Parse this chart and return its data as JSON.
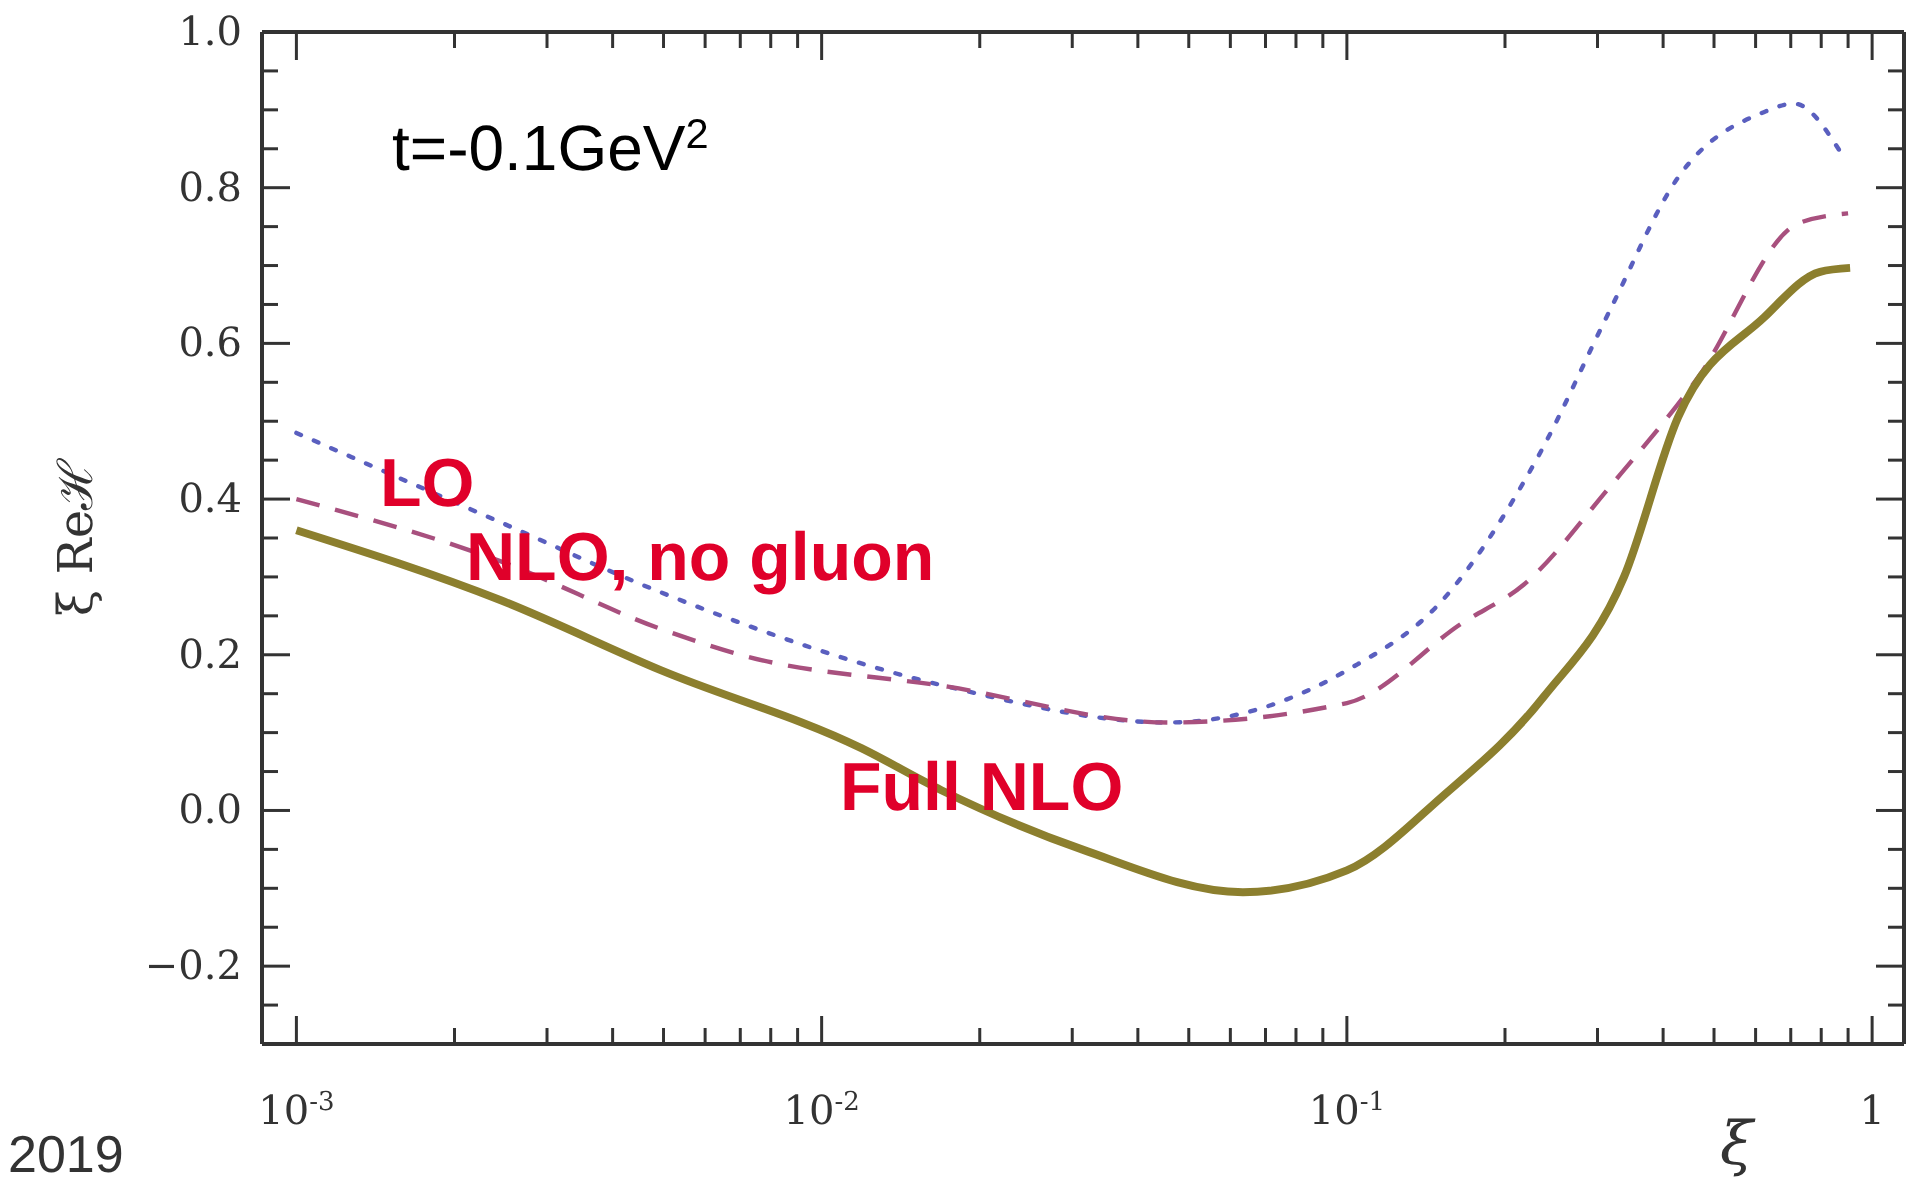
{
  "chart_data": {
    "type": "line",
    "xlabel": "ξ",
    "ylabel": "ξ Reℋ",
    "log": "x",
    "grid": false,
    "legend": false,
    "marker": "none",
    "xlim": [
      0.00086,
      1.15
    ],
    "ylim": [
      -0.3,
      1.0
    ],
    "xticks": [
      {
        "value": 0.001,
        "label": "10$^{-3}$"
      },
      {
        "value": 0.002,
        "label": null
      },
      {
        "value": 0.003,
        "label": null
      },
      {
        "value": 0.004,
        "label": null
      },
      {
        "value": 0.005,
        "label": null
      },
      {
        "value": 0.006,
        "label": null
      },
      {
        "value": 0.007,
        "label": null
      },
      {
        "value": 0.008,
        "label": null
      },
      {
        "value": 0.009,
        "label": null
      },
      {
        "value": 0.01,
        "label": "10$^{-2}$"
      },
      {
        "value": 0.02,
        "label": null
      },
      {
        "value": 0.03,
        "label": null
      },
      {
        "value": 0.04,
        "label": null
      },
      {
        "value": 0.05,
        "label": null
      },
      {
        "value": 0.06,
        "label": null
      },
      {
        "value": 0.07,
        "label": null
      },
      {
        "value": 0.08,
        "label": null
      },
      {
        "value": 0.09,
        "label": null
      },
      {
        "value": 0.1,
        "label": "10$^{-1}$"
      },
      {
        "value": 0.2,
        "label": null
      },
      {
        "value": 0.3,
        "label": null
      },
      {
        "value": 0.4,
        "label": null
      },
      {
        "value": 0.5,
        "label": null
      },
      {
        "value": 0.6,
        "label": null
      },
      {
        "value": 0.7,
        "label": null
      },
      {
        "value": 0.8,
        "label": null
      },
      {
        "value": 0.9,
        "label": null
      },
      {
        "value": 1,
        "label": "1"
      }
    ],
    "yticks": [
      {
        "value": -0.25,
        "label": null
      },
      {
        "value": -0.2,
        "label": "−0.2"
      },
      {
        "value": -0.15,
        "label": null
      },
      {
        "value": -0.1,
        "label": null
      },
      {
        "value": -0.05,
        "label": null
      },
      {
        "value": 0,
        "label": "0.0"
      },
      {
        "value": 0.05,
        "label": null
      },
      {
        "value": 0.1,
        "label": null
      },
      {
        "value": 0.15,
        "label": null
      },
      {
        "value": 0.2,
        "label": "0.2"
      },
      {
        "value": 0.25,
        "label": null
      },
      {
        "value": 0.3,
        "label": null
      },
      {
        "value": 0.35,
        "label": null
      },
      {
        "value": 0.4,
        "label": "0.4"
      },
      {
        "value": 0.45,
        "label": null
      },
      {
        "value": 0.5,
        "label": null
      },
      {
        "value": 0.55,
        "label": null
      },
      {
        "value": 0.6,
        "label": "0.6"
      },
      {
        "value": 0.65,
        "label": null
      },
      {
        "value": 0.7,
        "label": null
      },
      {
        "value": 0.75,
        "label": null
      },
      {
        "value": 0.8,
        "label": "0.8"
      },
      {
        "value": 0.85,
        "label": null
      },
      {
        "value": 0.9,
        "label": null
      },
      {
        "value": 0.95,
        "label": null
      },
      {
        "value": 1.0,
        "label": "1.0"
      }
    ],
    "annotations": [
      "t=-0.1GeV$^{2}$",
      "2019"
    ],
    "series": [
      {
        "name": "LO",
        "color": "#5a5fbf",
        "line_style": "dotted",
        "x": [
          0.001,
          0.00245,
          0.00495,
          0.0174,
          0.0457,
          0.1,
          0.152,
          0.231,
          0.316,
          0.427,
          0.622,
          0.71,
          0.87
        ],
        "values": [
          0.485,
          0.37,
          0.28,
          0.159,
          0.113,
          0.18,
          0.27,
          0.454,
          0.641,
          0.813,
          0.897,
          0.908,
          0.846
        ]
      },
      {
        "name": "NLO, no gluon",
        "color": "#a8507e",
        "line_style": "dashed",
        "x": [
          0.001,
          0.00245,
          0.00495,
          0.007,
          0.0174,
          0.0457,
          0.1,
          0.166,
          0.217,
          0.316,
          0.466,
          0.723,
          0.9
        ],
        "values": [
          0.4,
          0.32,
          0.233,
          0.2,
          0.159,
          0.113,
          0.138,
          0.241,
          0.29,
          0.415,
          0.556,
          0.754,
          0.767
        ]
      },
      {
        "name": "Full NLO",
        "color": "#8c7f2e",
        "line_style": "solid",
        "x": [
          0.001,
          0.00245,
          0.00495,
          0.0119,
          0.0169,
          0.0313,
          0.0634,
          0.1,
          0.152,
          0.237,
          0.337,
          0.427,
          0.622,
          0.796,
          0.908
        ],
        "values": [
          0.36,
          0.27,
          0.18,
          0.08,
          0.026,
          -0.05,
          -0.105,
          -0.077,
          0.018,
          0.146,
          0.3,
          0.505,
          0.633,
          0.692,
          0.697
        ]
      }
    ]
  }
}
